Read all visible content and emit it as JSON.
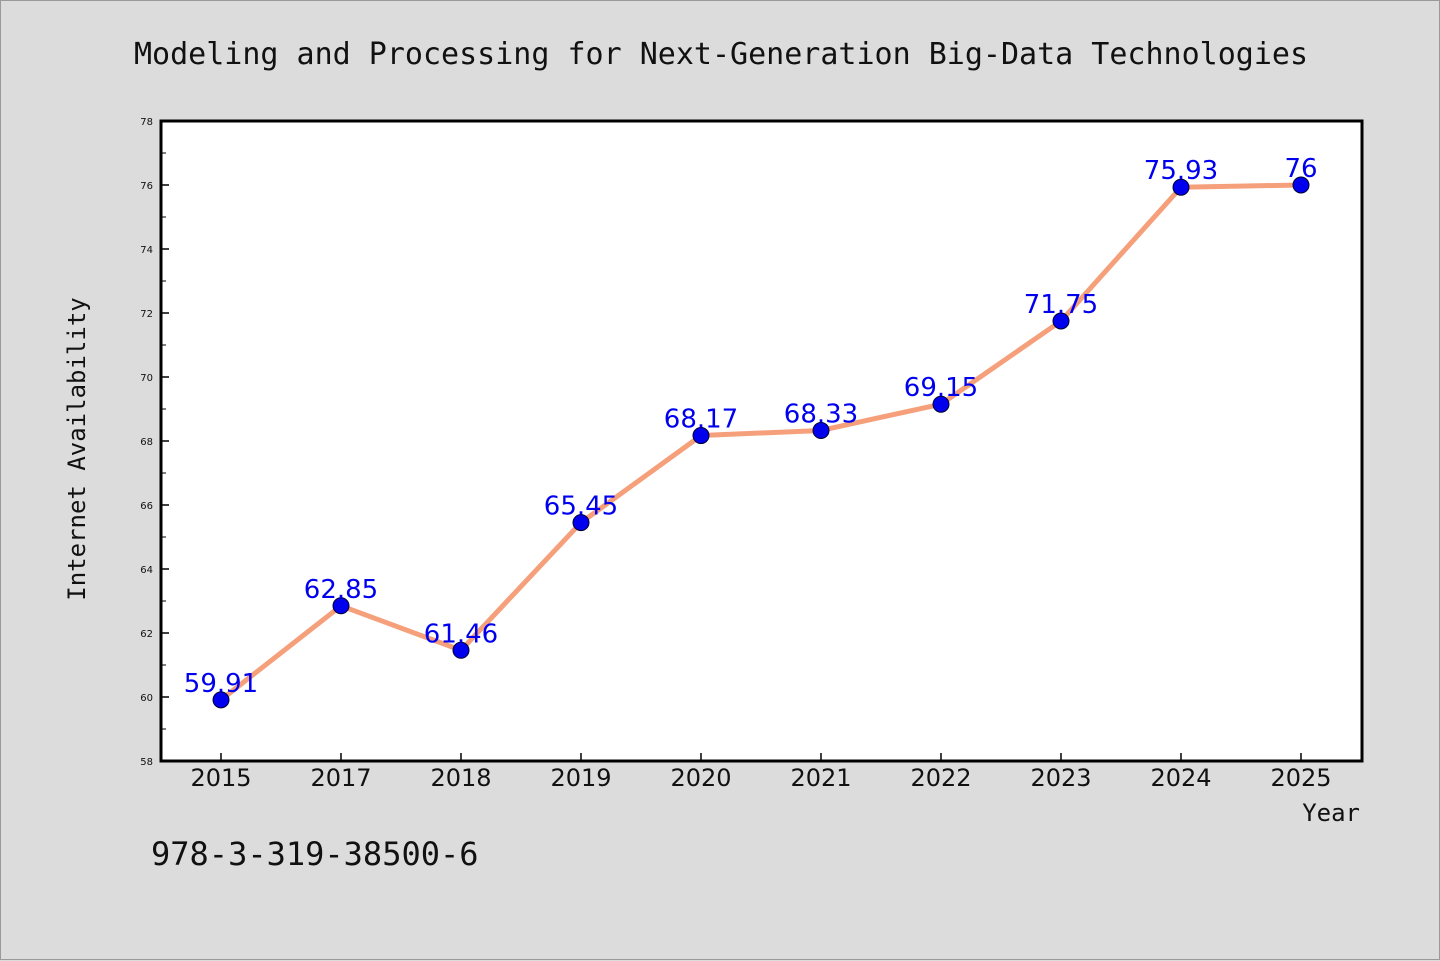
{
  "chart_data": {
    "type": "line",
    "title": "Modeling and Processing for Next-Generation Big-Data Technologies",
    "xlabel": "Year",
    "ylabel": "Internet Availability",
    "categories": [
      "2015",
      "2017",
      "2018",
      "2019",
      "2020",
      "2021",
      "2022",
      "2023",
      "2024",
      "2025"
    ],
    "series": [
      {
        "values": [
          59.91,
          62.85,
          61.46,
          65.45,
          68.17,
          68.33,
          69.15,
          71.75,
          75.93,
          76
        ],
        "data_labels": [
          "59.91",
          "62.85",
          "61.46",
          "65.45",
          "68.17",
          "68.33",
          "69.15",
          "71.75",
          "75.93",
          "76"
        ],
        "line_color": "#f5a07a",
        "marker_color": "#0000ee"
      }
    ],
    "ylim": [
      58,
      78
    ],
    "yticks": [
      "58",
      "60",
      "62",
      "64",
      "66",
      "68",
      "70",
      "72",
      "74",
      "76",
      "78"
    ],
    "grid": false,
    "legend": "none"
  },
  "footer_text": "978-3-319-38500-6"
}
